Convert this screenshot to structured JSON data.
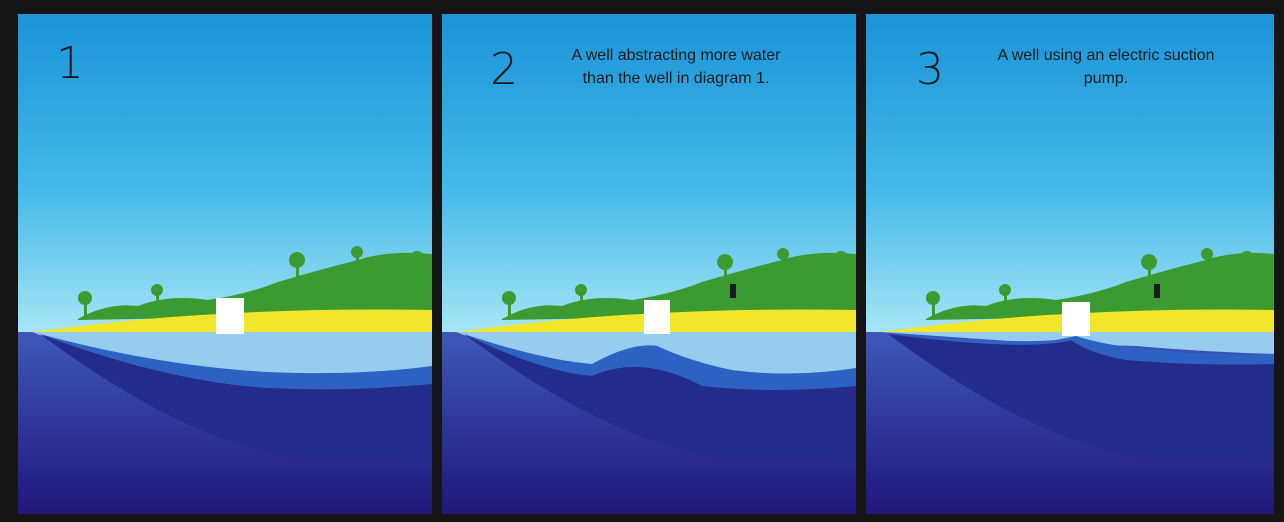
{
  "panels": [
    {
      "number": "1",
      "caption_line1": "",
      "caption_line2": ""
    },
    {
      "number": "2",
      "caption_line1": "A well abstracting more water",
      "caption_line2": "than the well in diagram 1."
    },
    {
      "number": "3",
      "caption_line1": "A well using an electric suction",
      "caption_line2": "pump."
    }
  ],
  "colors": {
    "sky_top": "#1b93d8",
    "sky_bottom": "#a8e6f6",
    "sea_top": "#3d58b8",
    "sea_bottom": "#21167a",
    "sand": "#f2e62a",
    "vegetation": "#3c9a33",
    "ground": "#96cdee",
    "water_table": "#2d62c2",
    "aquifer": "#232c8a",
    "well": "#ffffff"
  }
}
